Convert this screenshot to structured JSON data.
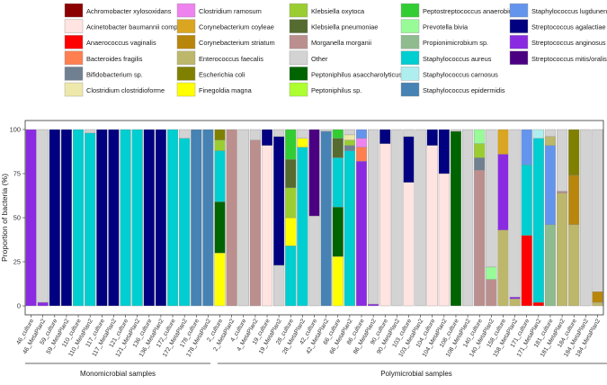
{
  "chart_data": {
    "type": "bar",
    "stacked": true,
    "ylabel": "Proportion of bacteria (%)",
    "ylim": [
      0,
      100
    ],
    "yticks": [
      0,
      25,
      50,
      75,
      100
    ],
    "legend": [
      {
        "name": "Achromobacter xylosoxidans",
        "color": "#8B0000"
      },
      {
        "name": "Acinetobacter baumannii complex",
        "color": "#FFE4E1"
      },
      {
        "name": "Anaerococcus vaginalis",
        "color": "#FF0000"
      },
      {
        "name": "Bacteroides fragilis",
        "color": "#FF7F50"
      },
      {
        "name": "Bifidobacterium sp.",
        "color": "#708090"
      },
      {
        "name": "Clostridium clostridioforme",
        "color": "#EEE8AA"
      },
      {
        "name": "Clostridium ramosum",
        "color": "#EE82EE"
      },
      {
        "name": "Corynebacterium coyleae",
        "color": "#DAA520"
      },
      {
        "name": "Corynebacterium striatum",
        "color": "#B8860B"
      },
      {
        "name": "Enterococcus faecalis",
        "color": "#BDB76B"
      },
      {
        "name": "Escherichia coli",
        "color": "#808000"
      },
      {
        "name": "Finegoldia magna",
        "color": "#FFFF00"
      },
      {
        "name": "Klebsiella oxytoca",
        "color": "#9ACD32"
      },
      {
        "name": "Klebsiella pneumoniae",
        "color": "#556B2F"
      },
      {
        "name": "Morganella morganii",
        "color": "#BC8F8F"
      },
      {
        "name": "Other",
        "color": "#D3D3D3"
      },
      {
        "name": "Peptoniphilus asaccharolyticus",
        "color": "#006400"
      },
      {
        "name": "Peptoniphilus sp.",
        "color": "#ADFF2F"
      },
      {
        "name": "Peptostreptococcus anaerobius",
        "color": "#32CD32"
      },
      {
        "name": "Prevotella bivia",
        "color": "#98FB98"
      },
      {
        "name": "Propionimicrobium sp.",
        "color": "#8FBC8F"
      },
      {
        "name": "Staphylococcus aureus",
        "color": "#00CED1"
      },
      {
        "name": "Staphylococcus carnosus",
        "color": "#AFEEEE"
      },
      {
        "name": "Staphylococcus epidermidis",
        "color": "#4682B4"
      },
      {
        "name": "Staphylococcus lugdunensis",
        "color": "#6495ED"
      },
      {
        "name": "Streptococcus agalactiae",
        "color": "#000080"
      },
      {
        "name": "Streptococcus anginosus",
        "color": "#8A2BE2"
      },
      {
        "name": "Streptococcus mitis/oralis",
        "color": "#4B0082"
      }
    ],
    "groups": [
      {
        "label": "Monomicrobial samples",
        "from": 0,
        "to": 15
      },
      {
        "label": "Polymicrobial samples",
        "from": 16,
        "to": 49
      }
    ],
    "samples": [
      {
        "label": "46_culture",
        "segments": [
          [
            "Streptococcus anginosus",
            100
          ]
        ]
      },
      {
        "label": "46_MetaPlan2",
        "segments": [
          [
            "Streptococcus anginosus",
            2
          ],
          [
            "Other",
            98
          ]
        ]
      },
      {
        "label": "59_culture",
        "segments": [
          [
            "Streptococcus agalactiae",
            100
          ]
        ]
      },
      {
        "label": "59_MetaPlan2",
        "segments": [
          [
            "Streptococcus agalactiae",
            100
          ]
        ]
      },
      {
        "label": "110_culture",
        "segments": [
          [
            "Staphylococcus aureus",
            100
          ]
        ]
      },
      {
        "label": "110_MetaPlan2",
        "segments": [
          [
            "Staphylococcus aureus",
            98
          ],
          [
            "Other",
            2
          ]
        ]
      },
      {
        "label": "117_culture",
        "segments": [
          [
            "Streptococcus agalactiae",
            100
          ]
        ]
      },
      {
        "label": "117_MetaPlan2",
        "segments": [
          [
            "Streptococcus agalactiae",
            100
          ]
        ]
      },
      {
        "label": "121_culture",
        "segments": [
          [
            "Staphylococcus aureus",
            100
          ]
        ]
      },
      {
        "label": "121_MetaPlan2",
        "segments": [
          [
            "Staphylococcus aureus",
            100
          ]
        ]
      },
      {
        "label": "136_culture",
        "segments": [
          [
            "Streptococcus agalactiae",
            100
          ]
        ]
      },
      {
        "label": "136_MetaPlan2",
        "segments": [
          [
            "Streptococcus agalactiae",
            100
          ]
        ]
      },
      {
        "label": "172_culture",
        "segments": [
          [
            "Staphylococcus aureus",
            100
          ]
        ]
      },
      {
        "label": "172_MetaPlan2",
        "segments": [
          [
            "Staphylococcus aureus",
            95
          ],
          [
            "Other",
            5
          ]
        ]
      },
      {
        "label": "178_culture",
        "segments": [
          [
            "Staphylococcus epidermidis",
            100
          ]
        ]
      },
      {
        "label": "178_MetaPlan2",
        "segments": [
          [
            "Staphylococcus epidermidis",
            100
          ]
        ]
      },
      {
        "label": "2_culture",
        "segments": [
          [
            "Finegoldia magna",
            30
          ],
          [
            "Peptoniphilus asaccharolyticus",
            29
          ],
          [
            "Staphylococcus aureus",
            29
          ],
          [
            "Klebsiella oxytoca",
            6
          ],
          [
            "Escherichia coli",
            6
          ]
        ]
      },
      {
        "label": "2_MetaPlan2",
        "segments": [
          [
            "Morganella morganii",
            100
          ]
        ]
      },
      {
        "label": "4_culture",
        "segments": [
          [
            "Other",
            100
          ]
        ]
      },
      {
        "label": "4_MetaPlan2",
        "segments": [
          [
            "Morganella morganii",
            94
          ],
          [
            "Other",
            6
          ]
        ]
      },
      {
        "label": "19_culture",
        "segments": [
          [
            "Acinetobacter baumannii complex",
            91
          ],
          [
            "Streptococcus agalactiae",
            9
          ]
        ]
      },
      {
        "label": "19_MetaPlan2",
        "segments": [
          [
            "Other",
            23
          ],
          [
            "Streptococcus agalactiae",
            73
          ],
          [
            "Other",
            4
          ]
        ]
      },
      {
        "label": "28_culture",
        "segments": [
          [
            "Staphylococcus aureus",
            34
          ],
          [
            "Finegoldia magna",
            16
          ],
          [
            "Klebsiella oxytoca",
            17
          ],
          [
            "Klebsiella pneumoniae",
            16
          ],
          [
            "Peptostreptococcus anaerobius",
            17
          ]
        ]
      },
      {
        "label": "28_MetaPlan2",
        "segments": [
          [
            "Staphylococcus aureus",
            90
          ],
          [
            "Finegoldia magna",
            5
          ],
          [
            "Other",
            5
          ]
        ]
      },
      {
        "label": "42_culture",
        "segments": [
          [
            "Other",
            51
          ],
          [
            "Streptococcus mitis/oralis",
            49
          ]
        ]
      },
      {
        "label": "42_MetaPlan2",
        "segments": [
          [
            "Staphylococcus epidermidis",
            99
          ],
          [
            "Other",
            1
          ]
        ]
      },
      {
        "label": "66_culture",
        "segments": [
          [
            "Finegoldia magna",
            28
          ],
          [
            "Peptoniphilus asaccharolyticus",
            28
          ],
          [
            "Staphylococcus aureus",
            28
          ],
          [
            "Klebsiella pneumoniae",
            11
          ],
          [
            "Peptostreptococcus anaerobius",
            5
          ]
        ]
      },
      {
        "label": "66_MetaPlan2",
        "segments": [
          [
            "Staphylococcus aureus",
            88
          ],
          [
            "Bifidobacterium sp.",
            3
          ],
          [
            "Klebsiella oxytoca",
            3
          ],
          [
            "Clostridium clostridioforme",
            3
          ],
          [
            "Other",
            3
          ]
        ]
      },
      {
        "label": "86_culture",
        "segments": [
          [
            "Streptococcus anginosus",
            82
          ],
          [
            "Bacteroides fragilis",
            8
          ],
          [
            "Clostridium ramosum",
            5
          ],
          [
            "Staphylococcus lugdunensis",
            5
          ]
        ]
      },
      {
        "label": "86_MetaPlan2",
        "segments": [
          [
            "Streptococcus anginosus",
            1
          ],
          [
            "Other",
            99
          ]
        ]
      },
      {
        "label": "90_culture",
        "segments": [
          [
            "Acinetobacter baumannii complex",
            92
          ],
          [
            "Streptococcus agalactiae",
            8
          ]
        ]
      },
      {
        "label": "90_MetaPlan2",
        "segments": [
          [
            "Other",
            100
          ]
        ]
      },
      {
        "label": "103_culture",
        "segments": [
          [
            "Acinetobacter baumannii complex",
            70
          ],
          [
            "Streptococcus agalactiae",
            26
          ],
          [
            "Other",
            4
          ]
        ]
      },
      {
        "label": "103_MetaPlan2",
        "segments": [
          [
            "Other",
            100
          ]
        ]
      },
      {
        "label": "104_culture",
        "segments": [
          [
            "Acinetobacter baumannii complex",
            91
          ],
          [
            "Streptococcus agalactiae",
            9
          ]
        ]
      },
      {
        "label": "104_MetaPlan2",
        "segments": [
          [
            "Acinetobacter baumannii complex",
            75
          ],
          [
            "Streptococcus agalactiae",
            25
          ]
        ]
      },
      {
        "label": "108_culture",
        "segments": [
          [
            "Peptoniphilus asaccharolyticus",
            99
          ],
          [
            "Other",
            1
          ]
        ]
      },
      {
        "label": "108_MetaPlan2",
        "segments": [
          [
            "Other",
            100
          ]
        ]
      },
      {
        "label": "140_culture",
        "segments": [
          [
            "Morganella morganii",
            77
          ],
          [
            "Bifidobacterium sp.",
            7
          ],
          [
            "Klebsiella oxytoca",
            8
          ],
          [
            "Prevotella bivia",
            8
          ]
        ]
      },
      {
        "label": "140_MetaPlan2",
        "segments": [
          [
            "Morganella morganii",
            15
          ],
          [
            "Prevotella bivia",
            7
          ],
          [
            "Other",
            78
          ]
        ]
      },
      {
        "label": "158_culture",
        "segments": [
          [
            "Enterococcus faecalis",
            43
          ],
          [
            "Streptococcus anginosus",
            43
          ],
          [
            "Corynebacterium coyleae",
            14
          ]
        ]
      },
      {
        "label": "158_MetaPlan2",
        "segments": [
          [
            "Enterococcus faecalis",
            4
          ],
          [
            "Streptococcus anginosus",
            1
          ],
          [
            "Other",
            95
          ]
        ]
      },
      {
        "label": "171_culture",
        "segments": [
          [
            "Anaerococcus vaginalis",
            40
          ],
          [
            "Staphylococcus aureus",
            40
          ],
          [
            "Staphylococcus lugdunensis",
            20
          ]
        ]
      },
      {
        "label": "171_MetaPlan2",
        "segments": [
          [
            "Anaerococcus vaginalis",
            2
          ],
          [
            "Staphylococcus aureus",
            93
          ],
          [
            "Staphylococcus carnosus",
            5
          ]
        ]
      },
      {
        "label": "181_culture",
        "segments": [
          [
            "Propionimicrobium sp.",
            46
          ],
          [
            "Staphylococcus lugdunensis",
            45
          ],
          [
            "Enterococcus faecalis",
            5
          ],
          [
            "Other",
            4
          ]
        ]
      },
      {
        "label": "181_MetaPlan2",
        "segments": [
          [
            "Enterococcus faecalis",
            64
          ],
          [
            "Morganella morganii",
            1
          ],
          [
            "Other",
            35
          ]
        ]
      },
      {
        "label": "184_culture",
        "segments": [
          [
            "Enterococcus faecalis",
            46
          ],
          [
            "Corynebacterium striatum",
            28
          ],
          [
            "Escherichia coli",
            26
          ]
        ]
      },
      {
        "label": "184_MetaPlan2",
        "segments": [
          [
            "Other",
            100
          ]
        ]
      },
      {
        "label": "184_MetaPlan2",
        "segments": [
          [
            "Enterococcus faecalis",
            2
          ],
          [
            "Corynebacterium striatum",
            6
          ],
          [
            "Other",
            92
          ]
        ]
      }
    ]
  }
}
